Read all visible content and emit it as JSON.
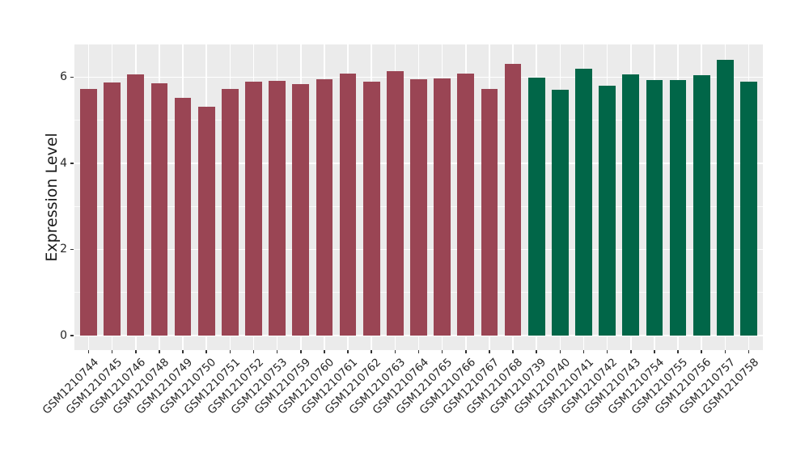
{
  "figure": {
    "panel_background": "#EBEBEB",
    "grid_color": "#FFFFFF",
    "tick_mark_color": "#333333",
    "text_color": "#262626"
  },
  "chart_data": {
    "type": "bar",
    "title": "",
    "xlabel": "",
    "ylabel": "Expression Level",
    "yticks": [
      0,
      2,
      4,
      6
    ],
    "minor_yticks": [
      1,
      3,
      5
    ],
    "ylim": [
      -0.34,
      6.76
    ],
    "grid": true,
    "legend": false,
    "categories": [
      "GSM1210744",
      "GSM1210745",
      "GSM1210746",
      "GSM1210748",
      "GSM1210749",
      "GSM1210750",
      "GSM1210751",
      "GSM1210752",
      "GSM1210753",
      "GSM1210759",
      "GSM1210760",
      "GSM1210761",
      "GSM1210762",
      "GSM1210763",
      "GSM1210764",
      "GSM1210765",
      "GSM1210766",
      "GSM1210767",
      "GSM1210768",
      "GSM1210739",
      "GSM1210740",
      "GSM1210741",
      "GSM1210742",
      "GSM1210743",
      "GSM1210754",
      "GSM1210755",
      "GSM1210756",
      "GSM1210757",
      "GSM1210758"
    ],
    "values": [
      5.72,
      5.88,
      6.07,
      5.86,
      5.52,
      5.32,
      5.73,
      5.9,
      5.92,
      5.84,
      5.95,
      6.08,
      5.9,
      6.14,
      5.95,
      5.98,
      6.09,
      5.72,
      6.31,
      5.99,
      5.7,
      6.2,
      5.8,
      6.06,
      5.93,
      5.93,
      6.04,
      6.4,
      5.9
    ],
    "bar_colors": [
      "#9A4554",
      "#9A4554",
      "#9A4554",
      "#9A4554",
      "#9A4554",
      "#9A4554",
      "#9A4554",
      "#9A4554",
      "#9A4554",
      "#9A4554",
      "#9A4554",
      "#9A4554",
      "#9A4554",
      "#9A4554",
      "#9A4554",
      "#9A4554",
      "#9A4554",
      "#9A4554",
      "#9A4554",
      "#016648",
      "#016648",
      "#016648",
      "#016648",
      "#016648",
      "#016648",
      "#016648",
      "#016648",
      "#016648",
      "#016648"
    ],
    "group_colors": {
      "left_group": "#9A4554",
      "right_group": "#016648"
    }
  }
}
